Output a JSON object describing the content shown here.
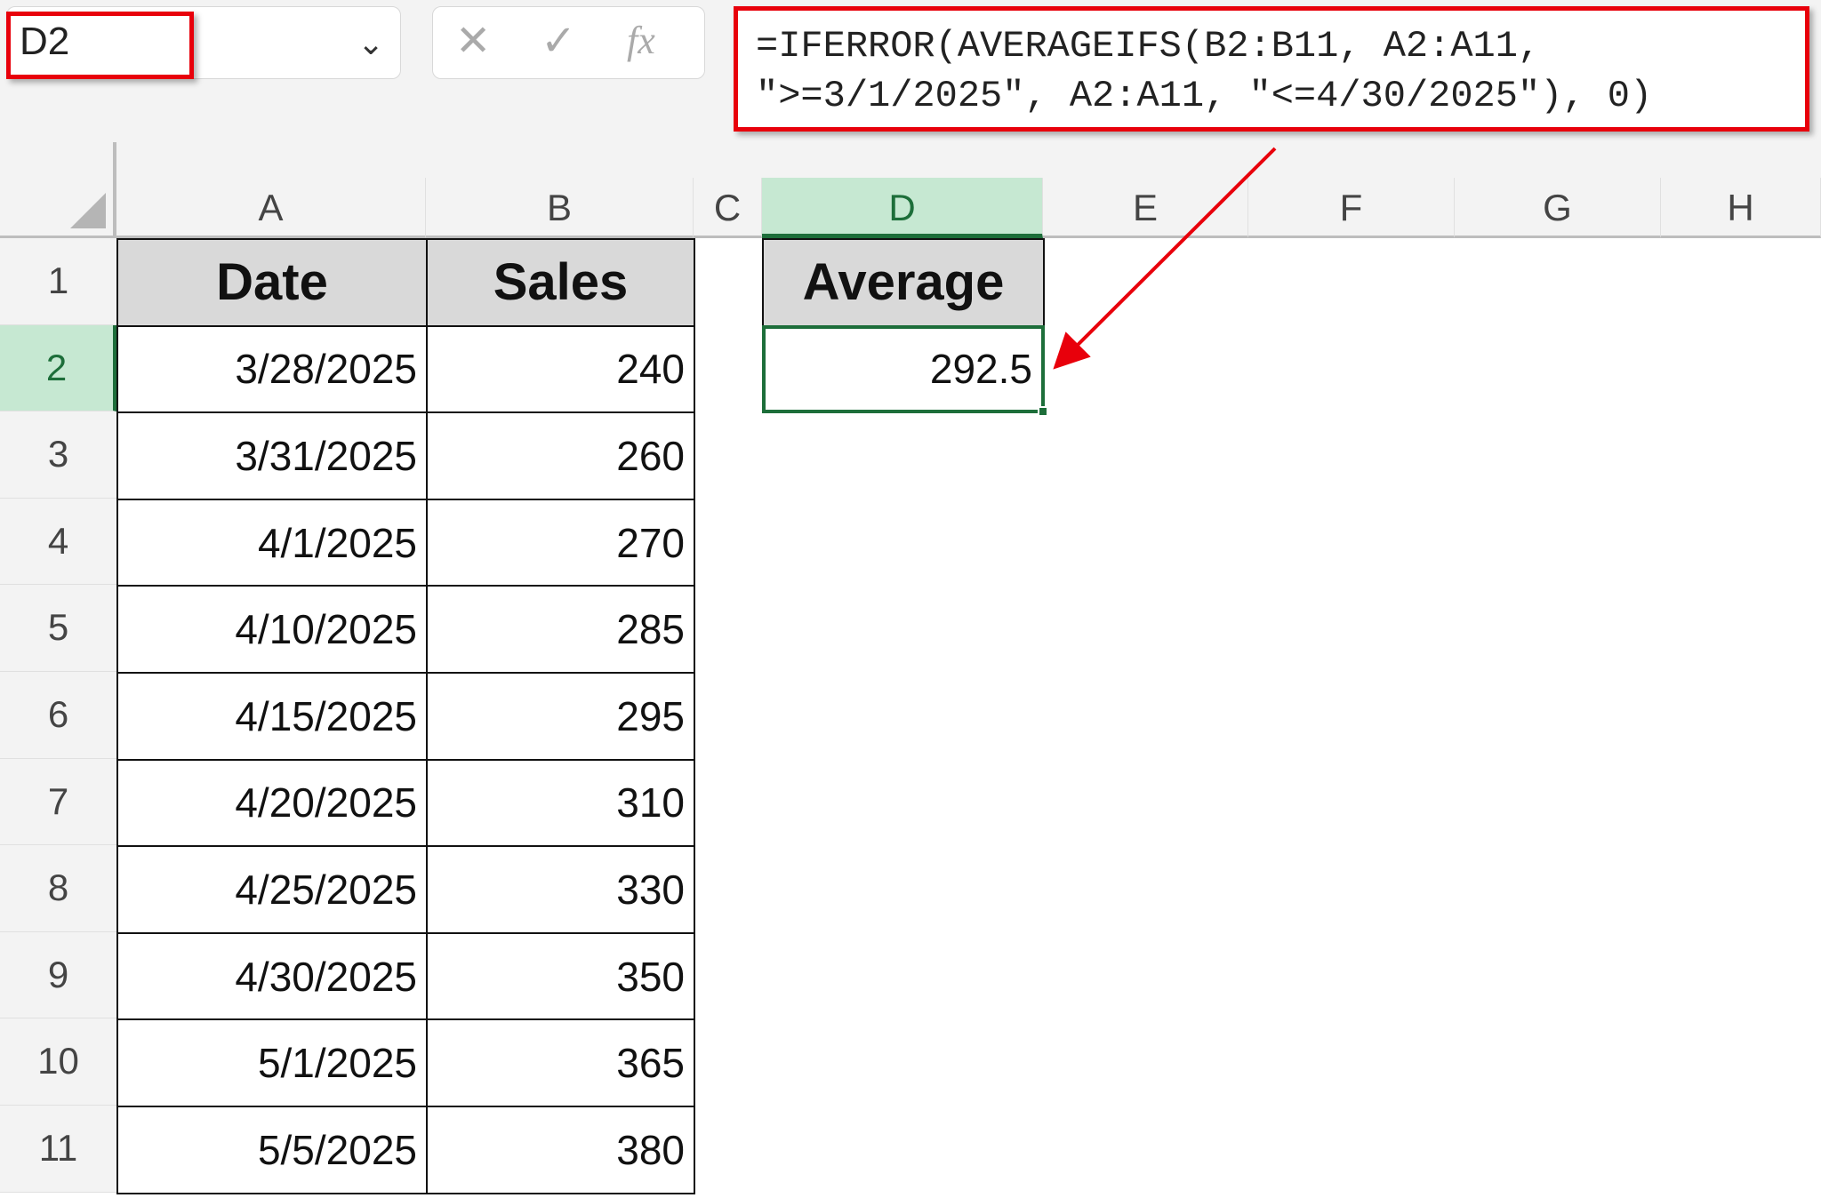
{
  "name_box": {
    "value": "D2"
  },
  "formula_bar": {
    "cancel_icon": "x-icon",
    "enter_icon": "check-icon",
    "fx_label": "fx",
    "formula_line1": "=IFERROR(AVERAGEIFS(B2:B11, A2:A11,",
    "formula_line2": "\">=3/1/2025\", A2:A11, \"<=4/30/2025\"), 0)"
  },
  "columns": [
    "A",
    "B",
    "C",
    "D",
    "E",
    "F",
    "G",
    "H"
  ],
  "rows": [
    "1",
    "2",
    "3",
    "4",
    "5",
    "6",
    "7",
    "8",
    "9",
    "10",
    "11"
  ],
  "table": {
    "headers": [
      "Date",
      "Sales"
    ],
    "data": [
      [
        "3/28/2025",
        "240"
      ],
      [
        "3/31/2025",
        "260"
      ],
      [
        "4/1/2025",
        "270"
      ],
      [
        "4/10/2025",
        "285"
      ],
      [
        "4/15/2025",
        "295"
      ],
      [
        "4/20/2025",
        "310"
      ],
      [
        "4/25/2025",
        "330"
      ],
      [
        "4/30/2025",
        "350"
      ],
      [
        "5/1/2025",
        "365"
      ],
      [
        "5/5/2025",
        "380"
      ]
    ]
  },
  "result": {
    "header": "Average",
    "value": "292.5"
  },
  "selected_cell": "D2",
  "colors": {
    "highlight_red": "#e8000b",
    "selection_green": "#1d6e3a",
    "header_fill": "#d9d9d9"
  }
}
